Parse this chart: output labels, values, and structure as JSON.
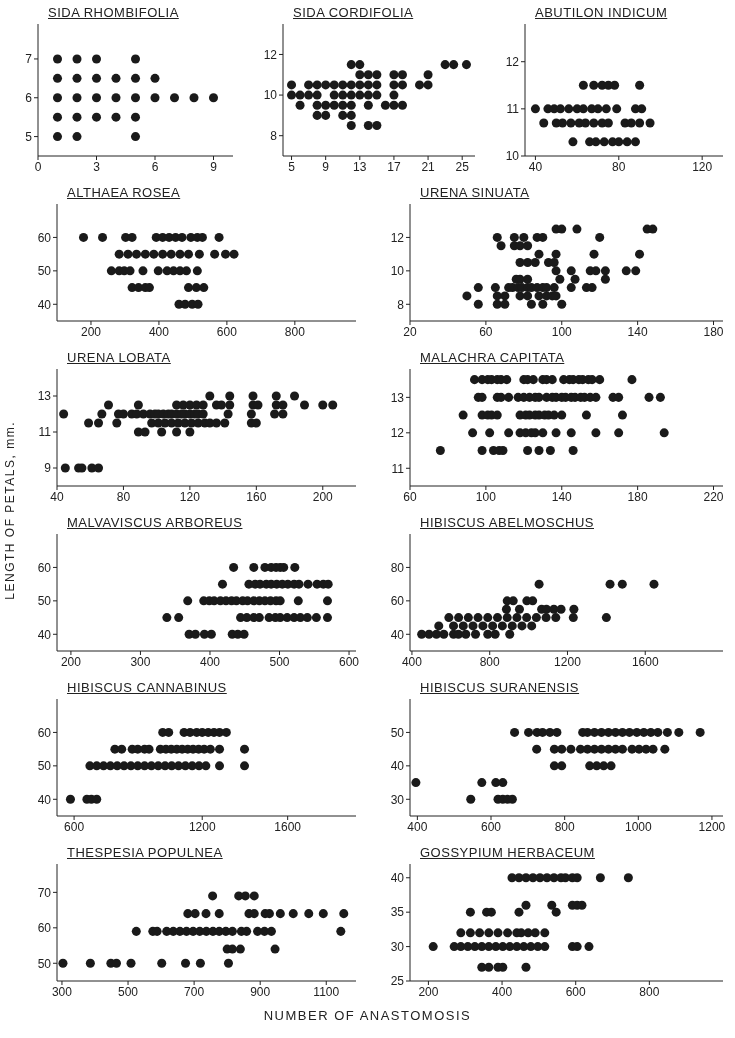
{
  "chart_data": [
    {
      "type": "scatter",
      "title": "SIDA RHOMBIFOLIA",
      "marker": "circle",
      "color": "#1a1a1a",
      "xlim": [
        0,
        10
      ],
      "xticks": [
        0,
        3,
        6,
        9
      ],
      "ylim": [
        4.5,
        7.9
      ],
      "yticks": [
        5,
        6,
        7
      ],
      "x": [
        1,
        1,
        1,
        1,
        1,
        2,
        2,
        2,
        2,
        2,
        3,
        3,
        3,
        3,
        4,
        4,
        4,
        5,
        5,
        5,
        5,
        5,
        6,
        6,
        7,
        8,
        9
      ],
      "values": [
        5,
        5.5,
        6,
        6.5,
        7,
        5,
        5.5,
        6,
        6.5,
        7,
        5.5,
        6,
        6.5,
        7,
        5.5,
        6,
        6.5,
        5,
        5.5,
        6,
        6.5,
        7,
        6,
        6.5,
        6,
        6,
        6
      ]
    },
    {
      "type": "scatter",
      "title": "SIDA CORDIFOLIA",
      "marker": "circle",
      "color": "#1a1a1a",
      "xlim": [
        4,
        26.5
      ],
      "xticks": [
        5,
        9,
        13,
        17,
        21,
        25
      ],
      "ylim": [
        7,
        13.5
      ],
      "yticks": [
        8,
        10,
        12
      ],
      "x": [
        12,
        13,
        23,
        24,
        25.5,
        13,
        14,
        15,
        17,
        18,
        21,
        5,
        7,
        8,
        9,
        10,
        11,
        12,
        13,
        14,
        15,
        17,
        18,
        20,
        21,
        5,
        6,
        7,
        8,
        10,
        11,
        12,
        13,
        14,
        15,
        17,
        6,
        8,
        9,
        10,
        11,
        12,
        14,
        16,
        17,
        18,
        8,
        9,
        11,
        12,
        12,
        14,
        15
      ],
      "values": [
        11.5,
        11.5,
        11.5,
        11.5,
        11.5,
        11,
        11,
        11,
        11,
        11,
        11,
        10.5,
        10.5,
        10.5,
        10.5,
        10.5,
        10.5,
        10.5,
        10.5,
        10.5,
        10.5,
        10.5,
        10.5,
        10.5,
        10.5,
        10,
        10,
        10,
        10,
        10,
        10,
        10,
        10,
        10,
        10,
        10,
        9.5,
        9.5,
        9.5,
        9.5,
        9.5,
        9.5,
        9.5,
        9.5,
        9.5,
        9.5,
        9,
        9,
        9,
        9,
        8.5,
        8.5,
        8.5
      ]
    },
    {
      "type": "scatter",
      "title": "ABUTILON INDICUM",
      "marker": "circle",
      "color": "#1a1a1a",
      "xlim": [
        35,
        130
      ],
      "xticks": [
        40,
        80,
        120
      ],
      "ylim": [
        10,
        12.8
      ],
      "yticks": [
        10,
        11,
        12
      ],
      "x": [
        63,
        68,
        72,
        75,
        78,
        90,
        40,
        46,
        49,
        52,
        56,
        60,
        63,
        67,
        70,
        74,
        79,
        88,
        91,
        44,
        50,
        53,
        57,
        61,
        64,
        68,
        72,
        75,
        83,
        86,
        90,
        95,
        58,
        66,
        69,
        73,
        77,
        80,
        84,
        88
      ],
      "values": [
        11.5,
        11.5,
        11.5,
        11.5,
        11.5,
        11.5,
        11,
        11,
        11,
        11,
        11,
        11,
        11,
        11,
        11,
        11,
        11,
        11,
        11,
        10.7,
        10.7,
        10.7,
        10.7,
        10.7,
        10.7,
        10.7,
        10.7,
        10.7,
        10.7,
        10.7,
        10.7,
        10.7,
        10.3,
        10.3,
        10.3,
        10.3,
        10.3,
        10.3,
        10.3,
        10.3
      ]
    },
    {
      "type": "scatter",
      "title": "ALTHAEA ROSEA",
      "marker": "circle",
      "color": "#1a1a1a",
      "xlim": [
        100,
        980
      ],
      "xticks": [
        200,
        400,
        600,
        800
      ],
      "ylim": [
        35,
        70
      ],
      "yticks": [
        40,
        50,
        60
      ],
      "x": [
        178,
        234,
        302,
        321,
        392,
        411,
        430,
        449,
        468,
        494,
        513,
        528,
        577,
        283,
        309,
        334,
        360,
        385,
        411,
        436,
        462,
        487,
        519,
        564,
        596,
        621,
        260,
        283,
        298,
        315,
        353,
        398,
        424,
        443,
        462,
        481,
        513,
        321,
        340,
        360,
        372,
        487,
        510,
        532,
        459,
        477,
        498,
        515
      ],
      "values": [
        60,
        60,
        60,
        60,
        60,
        60,
        60,
        60,
        60,
        60,
        60,
        60,
        60,
        55,
        55,
        55,
        55,
        55,
        55,
        55,
        55,
        55,
        55,
        55,
        55,
        55,
        50,
        50,
        50,
        50,
        50,
        50,
        50,
        50,
        50,
        50,
        50,
        45,
        45,
        45,
        45,
        45,
        45,
        45,
        40,
        40,
        40,
        40
      ]
    },
    {
      "type": "scatter",
      "title": "URENA SINUATA",
      "marker": "circle",
      "color": "#1a1a1a",
      "xlim": [
        20,
        185
      ],
      "xticks": [
        20,
        60,
        100,
        140,
        180
      ],
      "ylim": [
        7,
        14
      ],
      "yticks": [
        8,
        10,
        12
      ],
      "x": [
        97,
        100,
        108,
        145,
        148,
        66,
        75,
        80,
        87,
        90,
        120,
        68,
        75,
        78,
        82,
        88,
        97,
        117,
        141,
        78,
        82,
        86,
        93,
        96,
        97,
        105,
        115,
        118,
        123,
        134,
        139,
        76,
        78,
        82,
        99,
        107,
        123,
        56,
        65,
        72,
        74,
        77,
        79,
        82,
        84,
        87,
        90,
        92,
        96,
        105,
        113,
        116,
        50,
        66,
        70,
        78,
        82,
        88,
        92,
        95,
        97,
        56,
        66,
        70,
        84,
        90,
        100
      ],
      "values": [
        12.5,
        12.5,
        12.5,
        12.5,
        12.5,
        12,
        12,
        12,
        12,
        12,
        12,
        11.5,
        11.5,
        11.5,
        11.5,
        11,
        11,
        11,
        11,
        10.5,
        10.5,
        10.5,
        10.5,
        10.5,
        10,
        10,
        10,
        10,
        10,
        10,
        10,
        9.5,
        9.5,
        9.5,
        9.5,
        9.5,
        9.5,
        9,
        9,
        9,
        9,
        9,
        9,
        9,
        9,
        9,
        9,
        9,
        9,
        9,
        9,
        9,
        8.5,
        8.5,
        8.5,
        8.5,
        8.5,
        8.5,
        8.5,
        8.5,
        8.5,
        8,
        8,
        8,
        8,
        8,
        8
      ]
    },
    {
      "type": "scatter",
      "title": "URENA LOBATA",
      "ylabel": "LENGTH OF PETALS, mm.",
      "marker": "circle",
      "color": "#1a1a1a",
      "xlim": [
        40,
        220
      ],
      "xticks": [
        40,
        80,
        120,
        160,
        200
      ],
      "ylim": [
        8,
        14.5
      ],
      "yticks": [
        9,
        11,
        13
      ],
      "x": [
        132,
        144,
        158,
        172,
        183,
        71,
        89,
        112,
        116,
        120,
        124,
        128,
        136,
        139,
        144,
        158,
        161,
        172,
        176,
        189,
        200,
        206,
        44,
        67,
        77,
        80,
        85,
        88,
        92,
        96,
        99,
        101,
        104,
        107,
        109,
        112,
        115,
        117,
        120,
        123,
        125,
        128,
        143,
        157,
        171,
        176,
        59,
        65,
        76,
        97,
        101,
        105,
        109,
        113,
        117,
        121,
        125,
        129,
        132,
        136,
        141,
        157,
        160,
        89,
        93,
        103,
        112,
        120,
        45,
        53,
        55,
        61,
        65
      ],
      "values": [
        13,
        13,
        13,
        13,
        13,
        12.5,
        12.5,
        12.5,
        12.5,
        12.5,
        12.5,
        12.5,
        12.5,
        12.5,
        12.5,
        12.5,
        12.5,
        12.5,
        12.5,
        12.5,
        12.5,
        12.5,
        12,
        12,
        12,
        12,
        12,
        12,
        12,
        12,
        12,
        12,
        12,
        12,
        12,
        12,
        12,
        12,
        12,
        12,
        12,
        12,
        12,
        12,
        12,
        12,
        11.5,
        11.5,
        11.5,
        11.5,
        11.5,
        11.5,
        11.5,
        11.5,
        11.5,
        11.5,
        11.5,
        11.5,
        11.5,
        11.5,
        11.5,
        11.5,
        11.5,
        11,
        11,
        11,
        11,
        11,
        9,
        9,
        9,
        9,
        9
      ]
    },
    {
      "type": "scatter",
      "title": "MALACHRA CAPITATA",
      "marker": "circle",
      "color": "#1a1a1a",
      "xlim": [
        60,
        225
      ],
      "xticks": [
        60,
        100,
        140,
        180,
        220
      ],
      "ylim": [
        10.5,
        13.8
      ],
      "yticks": [
        11,
        12,
        13
      ],
      "x": [
        94,
        98,
        101,
        103,
        106,
        108,
        111,
        120,
        122,
        125,
        130,
        132,
        135,
        141,
        144,
        146,
        149,
        151,
        154,
        156,
        160,
        177,
        96,
        98,
        106,
        108,
        112,
        117,
        120,
        123,
        126,
        128,
        132,
        135,
        137,
        140,
        142,
        145,
        147,
        150,
        152,
        155,
        158,
        167,
        170,
        186,
        192,
        88,
        98,
        101,
        103,
        106,
        118,
        121,
        123,
        126,
        128,
        131,
        133,
        136,
        140,
        153,
        172,
        93,
        102,
        112,
        118,
        121,
        124,
        126,
        130,
        137,
        145,
        158,
        170,
        194,
        76,
        98,
        104,
        107,
        109,
        122,
        128,
        134,
        146
      ],
      "values": [
        13.5,
        13.5,
        13.5,
        13.5,
        13.5,
        13.5,
        13.5,
        13.5,
        13.5,
        13.5,
        13.5,
        13.5,
        13.5,
        13.5,
        13.5,
        13.5,
        13.5,
        13.5,
        13.5,
        13.5,
        13.5,
        13.5,
        13,
        13,
        13,
        13,
        13,
        13,
        13,
        13,
        13,
        13,
        13,
        13,
        13,
        13,
        13,
        13,
        13,
        13,
        13,
        13,
        13,
        13,
        13,
        13,
        13,
        12.5,
        12.5,
        12.5,
        12.5,
        12.5,
        12.5,
        12.5,
        12.5,
        12.5,
        12.5,
        12.5,
        12.5,
        12.5,
        12.5,
        12.5,
        12.5,
        12,
        12,
        12,
        12,
        12,
        12,
        12,
        12,
        12,
        12,
        12,
        12,
        12,
        11.5,
        11.5,
        11.5,
        11.5,
        11.5,
        11.5,
        11.5,
        11.5,
        11.5
      ]
    },
    {
      "type": "scatter",
      "title": "MALVAVISCUS ARBOREUS",
      "marker": "circle",
      "color": "#1a1a1a",
      "xlim": [
        180,
        610
      ],
      "xticks": [
        200,
        300,
        400,
        500,
        600
      ],
      "ylim": [
        35,
        70
      ],
      "yticks": [
        40,
        50,
        60
      ],
      "x": [
        434,
        463,
        479,
        488,
        495,
        501,
        506,
        522,
        418,
        456,
        465,
        472,
        481,
        488,
        496,
        504,
        512,
        521,
        528,
        541,
        554,
        563,
        570,
        368,
        391,
        399,
        406,
        415,
        423,
        431,
        438,
        447,
        454,
        463,
        471,
        479,
        487,
        495,
        501,
        527,
        569,
        338,
        355,
        444,
        453,
        463,
        471,
        485,
        494,
        501,
        511,
        521,
        530,
        540,
        553,
        569,
        370,
        379,
        392,
        402,
        432,
        440,
        449
      ],
      "values": [
        60,
        60,
        60,
        60,
        60,
        60,
        60,
        60,
        55,
        55,
        55,
        55,
        55,
        55,
        55,
        55,
        55,
        55,
        55,
        55,
        55,
        55,
        55,
        50,
        50,
        50,
        50,
        50,
        50,
        50,
        50,
        50,
        50,
        50,
        50,
        50,
        50,
        50,
        50,
        50,
        50,
        45,
        45,
        45,
        45,
        45,
        45,
        45,
        45,
        45,
        45,
        45,
        45,
        45,
        45,
        45,
        40,
        40,
        40,
        40,
        40,
        40,
        40
      ]
    },
    {
      "type": "scatter",
      "title": "HIBISCUS ABELMOSCHUS",
      "marker": "circle",
      "color": "#1a1a1a",
      "xlim": [
        390,
        2000
      ],
      "xticks": [
        400,
        800,
        1200,
        1600
      ],
      "ylim": [
        30,
        100
      ],
      "yticks": [
        40,
        60,
        80
      ],
      "x": [
        1054,
        1419,
        1482,
        1645,
        890,
        921,
        991,
        1021,
        886,
        953,
        1067,
        1092,
        1130,
        1167,
        1233,
        590,
        640,
        690,
        740,
        790,
        840,
        890,
        940,
        990,
        1040,
        1090,
        1140,
        1230,
        1400,
        538,
        614,
        664,
        714,
        765,
        815,
        865,
        916,
        966,
        1016,
        450,
        488,
        526,
        564,
        614,
        639,
        677,
        727,
        790,
        828,
        903
      ],
      "values": [
        70,
        70,
        70,
        70,
        60,
        60,
        60,
        60,
        55,
        55,
        55,
        55,
        55,
        55,
        55,
        50,
        50,
        50,
        50,
        50,
        50,
        50,
        50,
        50,
        50,
        50,
        50,
        50,
        50,
        45,
        45,
        45,
        45,
        45,
        45,
        45,
        45,
        45,
        45,
        40,
        40,
        40,
        40,
        40,
        40,
        40,
        40,
        40,
        40,
        40
      ]
    },
    {
      "type": "scatter",
      "title": "HIBISCUS CANNABINUS",
      "marker": "circle",
      "color": "#1a1a1a",
      "xlim": [
        520,
        1920
      ],
      "xticks": [
        600,
        1200,
        1600
      ],
      "ylim": [
        35,
        70
      ],
      "yticks": [
        40,
        50,
        60
      ],
      "x": [
        1015,
        1043,
        1115,
        1143,
        1174,
        1200,
        1228,
        1255,
        1281,
        1313,
        791,
        823,
        872,
        898,
        930,
        951,
        1004,
        1030,
        1055,
        1081,
        1106,
        1132,
        1157,
        1183,
        1209,
        1238,
        1281,
        1398,
        674,
        706,
        738,
        770,
        802,
        834,
        866,
        898,
        930,
        962,
        994,
        1026,
        1057,
        1089,
        1121,
        1153,
        1185,
        1217,
        1281,
        1398,
        583,
        660,
        681,
        706
      ],
      "values": [
        60,
        60,
        60,
        60,
        60,
        60,
        60,
        60,
        60,
        60,
        55,
        55,
        55,
        55,
        55,
        55,
        55,
        55,
        55,
        55,
        55,
        55,
        55,
        55,
        55,
        55,
        55,
        55,
        50,
        50,
        50,
        50,
        50,
        50,
        50,
        50,
        50,
        50,
        50,
        50,
        50,
        50,
        50,
        50,
        50,
        50,
        50,
        50,
        40,
        40,
        40,
        40
      ]
    },
    {
      "type": "scatter",
      "title": "HIBISCUS SURANENSIS",
      "marker": "circle",
      "color": "#1a1a1a",
      "xlim": [
        380,
        1230
      ],
      "xticks": [
        400,
        600,
        800,
        1000,
        1200
      ],
      "ylim": [
        25,
        60
      ],
      "yticks": [
        30,
        40,
        50
      ],
      "x": [
        664,
        702,
        725,
        740,
        760,
        779,
        849,
        862,
        881,
        900,
        919,
        938,
        957,
        976,
        996,
        1015,
        1034,
        1053,
        1079,
        1110,
        1168,
        724,
        772,
        792,
        817,
        843,
        862,
        881,
        900,
        919,
        938,
        957,
        983,
        1002,
        1021,
        1040,
        1072,
        772,
        792,
        868,
        887,
        906,
        926,
        396,
        575,
        613,
        632,
        545,
        619,
        632,
        645,
        658
      ],
      "values": [
        50,
        50,
        50,
        50,
        50,
        50,
        50,
        50,
        50,
        50,
        50,
        50,
        50,
        50,
        50,
        50,
        50,
        50,
        50,
        50,
        50,
        45,
        45,
        45,
        45,
        45,
        45,
        45,
        45,
        45,
        45,
        45,
        45,
        45,
        45,
        45,
        45,
        40,
        40,
        40,
        40,
        40,
        40,
        35,
        35,
        35,
        35,
        30,
        30,
        30,
        30,
        30
      ]
    },
    {
      "type": "scatter",
      "title": "THESPESIA POPULNEA",
      "xlabel": "NUMBER OF ANASTOMOSIS",
      "marker": "circle",
      "color": "#1a1a1a",
      "xlim": [
        285,
        1190
      ],
      "xticks": [
        300,
        500,
        700,
        900,
        1100
      ],
      "ylim": [
        45,
        78
      ],
      "yticks": [
        50,
        60,
        70
      ],
      "x": [
        756,
        835,
        855,
        882,
        681,
        703,
        736,
        776,
        866,
        882,
        915,
        928,
        961,
        1000,
        1047,
        1091,
        1153,
        525,
        575,
        588,
        617,
        637,
        657,
        677,
        697,
        717,
        737,
        757,
        776,
        796,
        816,
        843,
        859,
        892,
        913,
        934,
        1144,
        800,
        816,
        840,
        945,
        303,
        386,
        448,
        465,
        509,
        602,
        674,
        719,
        804
      ],
      "values": [
        69,
        69,
        69,
        69,
        64,
        64,
        64,
        64,
        64,
        64,
        64,
        64,
        64,
        64,
        64,
        64,
        64,
        59,
        59,
        59,
        59,
        59,
        59,
        59,
        59,
        59,
        59,
        59,
        59,
        59,
        59,
        59,
        59,
        59,
        59,
        59,
        59,
        54,
        54,
        54,
        54,
        50,
        50,
        50,
        50,
        50,
        50,
        50,
        50,
        50
      ]
    },
    {
      "type": "scatter",
      "title": "GOSSYPIUM HERBACEUM",
      "marker": "circle",
      "color": "#1a1a1a",
      "xlim": [
        150,
        1000
      ],
      "xticks": [
        200,
        400,
        600,
        800
      ],
      "ylim": [
        25,
        42
      ],
      "yticks": [
        25,
        30,
        35,
        40
      ],
      "x": [
        427,
        446,
        465,
        484,
        503,
        522,
        541,
        560,
        572,
        591,
        604,
        667,
        743,
        465,
        535,
        591,
        604,
        617,
        314,
        358,
        371,
        446,
        547,
        288,
        314,
        339,
        364,
        389,
        415,
        440,
        452,
        471,
        490,
        516,
        213,
        270,
        288,
        307,
        326,
        345,
        364,
        383,
        402,
        421,
        440,
        459,
        478,
        497,
        516,
        591,
        604,
        636,
        345,
        364,
        389,
        402,
        465
      ],
      "values": [
        40,
        40,
        40,
        40,
        40,
        40,
        40,
        40,
        40,
        40,
        40,
        40,
        40,
        36,
        36,
        36,
        36,
        36,
        35,
        35,
        35,
        35,
        35,
        32,
        32,
        32,
        32,
        32,
        32,
        32,
        32,
        32,
        32,
        32,
        30,
        30,
        30,
        30,
        30,
        30,
        30,
        30,
        30,
        30,
        30,
        30,
        30,
        30,
        30,
        30,
        30,
        30,
        27,
        27,
        27,
        27,
        27
      ]
    }
  ]
}
